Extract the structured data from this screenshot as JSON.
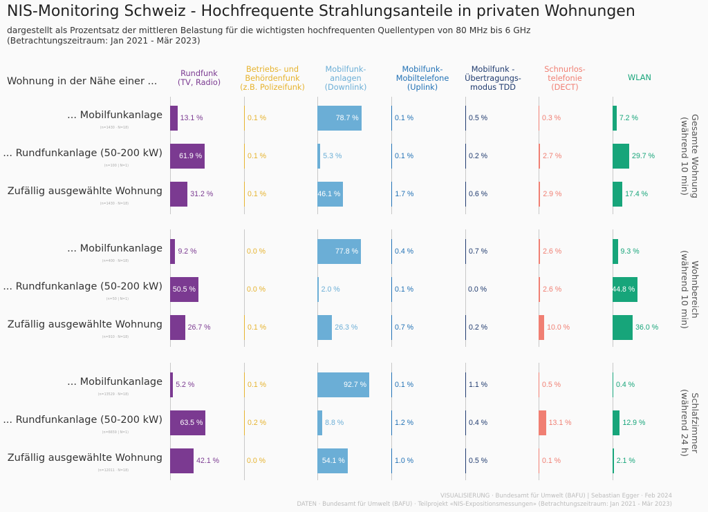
{
  "chart_data": {
    "type": "bar",
    "title": "NIS-Monitoring Schweiz - Hochfrequente Strahlungsanteile in privaten Wohnungen",
    "subtitle": "dargestellt als Prozentsatz der mittleren Belastung für die wichtigsten hochfrequenten Quellentypen von 80 MHz bis 6 GHz",
    "subtitle2": "(Betrachtungszeitraum: Jan 2021 - Mär 2023)",
    "row_header": "Wohnung in der Nähe einer ...",
    "xlim": [
      0,
      100
    ],
    "columns": [
      {
        "name": "Rundfunk",
        "label_lines": [
          "Rundfunk",
          "(TV, Radio)"
        ],
        "color": "#7b3a91"
      },
      {
        "name": "Betriebs- und Behördenfunk",
        "label_lines": [
          "Betriebs- und",
          "Behördenfunk",
          "(z.B. Polizeifunk)"
        ],
        "color": "#e6b32e"
      },
      {
        "name": "Mobilfunkanlagen",
        "label_lines": [
          "Mobilfunk-",
          "anlagen",
          "(Downlink)"
        ],
        "color": "#6baed6"
      },
      {
        "name": "Mobilfunk-Mobiltelefone",
        "label_lines": [
          "Mobilfunk-",
          "Mobiltelefone",
          "(Uplink)"
        ],
        "color": "#2171b5"
      },
      {
        "name": "Mobilfunk - Übertragungsmodus TDD",
        "label_lines": [
          "Mobilfunk -",
          "Übertragungs-",
          "modus TDD"
        ],
        "color": "#1f3a6e"
      },
      {
        "name": "Schnurlostelefonie",
        "label_lines": [
          "Schnurlos-",
          "telefonie",
          "(DECT)"
        ],
        "color": "#f07f73"
      },
      {
        "name": "WLAN",
        "label_lines": [
          "WLAN"
        ],
        "color": "#17a57a"
      }
    ],
    "groups": [
      {
        "label_lines": [
          "Gesamte Wohnung",
          "(während 10 min)"
        ],
        "rows": [
          {
            "label": "... Mobilfunkanlage",
            "note": "(n=1430 · N=18)",
            "values": [
              13.1,
              0.1,
              78.7,
              0.1,
              0.5,
              0.3,
              7.2
            ]
          },
          {
            "label": "... Rundfunkanlage (50-200 kW)",
            "note": "(n=100 | N=1)",
            "values": [
              61.9,
              0.1,
              5.3,
              0.1,
              0.2,
              2.7,
              29.7
            ]
          },
          {
            "label": "Zufällig ausgewählte Wohnung",
            "note": "(n=1430 · N=18)",
            "values": [
              31.2,
              0.1,
              46.1,
              1.7,
              0.6,
              2.9,
              17.4
            ]
          }
        ]
      },
      {
        "label_lines": [
          "Wohnbereich",
          "(während 10 min)"
        ],
        "rows": [
          {
            "label": "... Mobilfunkanlage",
            "note": "(n=400 · N=18)",
            "values": [
              9.2,
              0.0,
              77.8,
              0.4,
              0.7,
              2.6,
              9.3
            ]
          },
          {
            "label": "... Rundfunkanlage (50-200 kW)",
            "note": "(n=50 | N=1)",
            "values": [
              50.5,
              0.0,
              2.0,
              0.1,
              0.0,
              2.6,
              44.8
            ]
          },
          {
            "label": "Zufällig ausgewählte Wohnung",
            "note": "(n=910 · N=18)",
            "values": [
              26.7,
              0.1,
              26.3,
              0.7,
              0.2,
              10.0,
              36.0
            ]
          }
        ]
      },
      {
        "label_lines": [
          "Schlafzimmer",
          "(während 24 h)"
        ],
        "rows": [
          {
            "label": "... Mobilfunkanlage",
            "note": "(n=13529 · N=18)",
            "values": [
              5.2,
              0.1,
              92.7,
              0.1,
              1.1,
              0.5,
              0.4
            ]
          },
          {
            "label": "... Rundfunkanlage (50-200 kW)",
            "note": "(n=6659 | N=1)",
            "values": [
              63.5,
              0.2,
              8.8,
              1.2,
              0.4,
              13.1,
              12.9
            ]
          },
          {
            "label": "Zufällig ausgewählte Wohnung",
            "note": "(n=12011 · N=18)",
            "values": [
              42.1,
              0.0,
              54.1,
              1.0,
              0.5,
              0.1,
              2.1
            ]
          }
        ]
      }
    ]
  },
  "footer": {
    "line1": "VISUALISIERUNG · Bundesamt für Umwelt (BAFU) | Sebastian Egger · Feb 2024",
    "line2": "DATEN · Bundesamt für Umwelt (BAFU) · Teilprojekt «NIS-Expositionsmessungen» (Betrachtungszeitraum: Jan 2021 - Mär 2023)"
  }
}
